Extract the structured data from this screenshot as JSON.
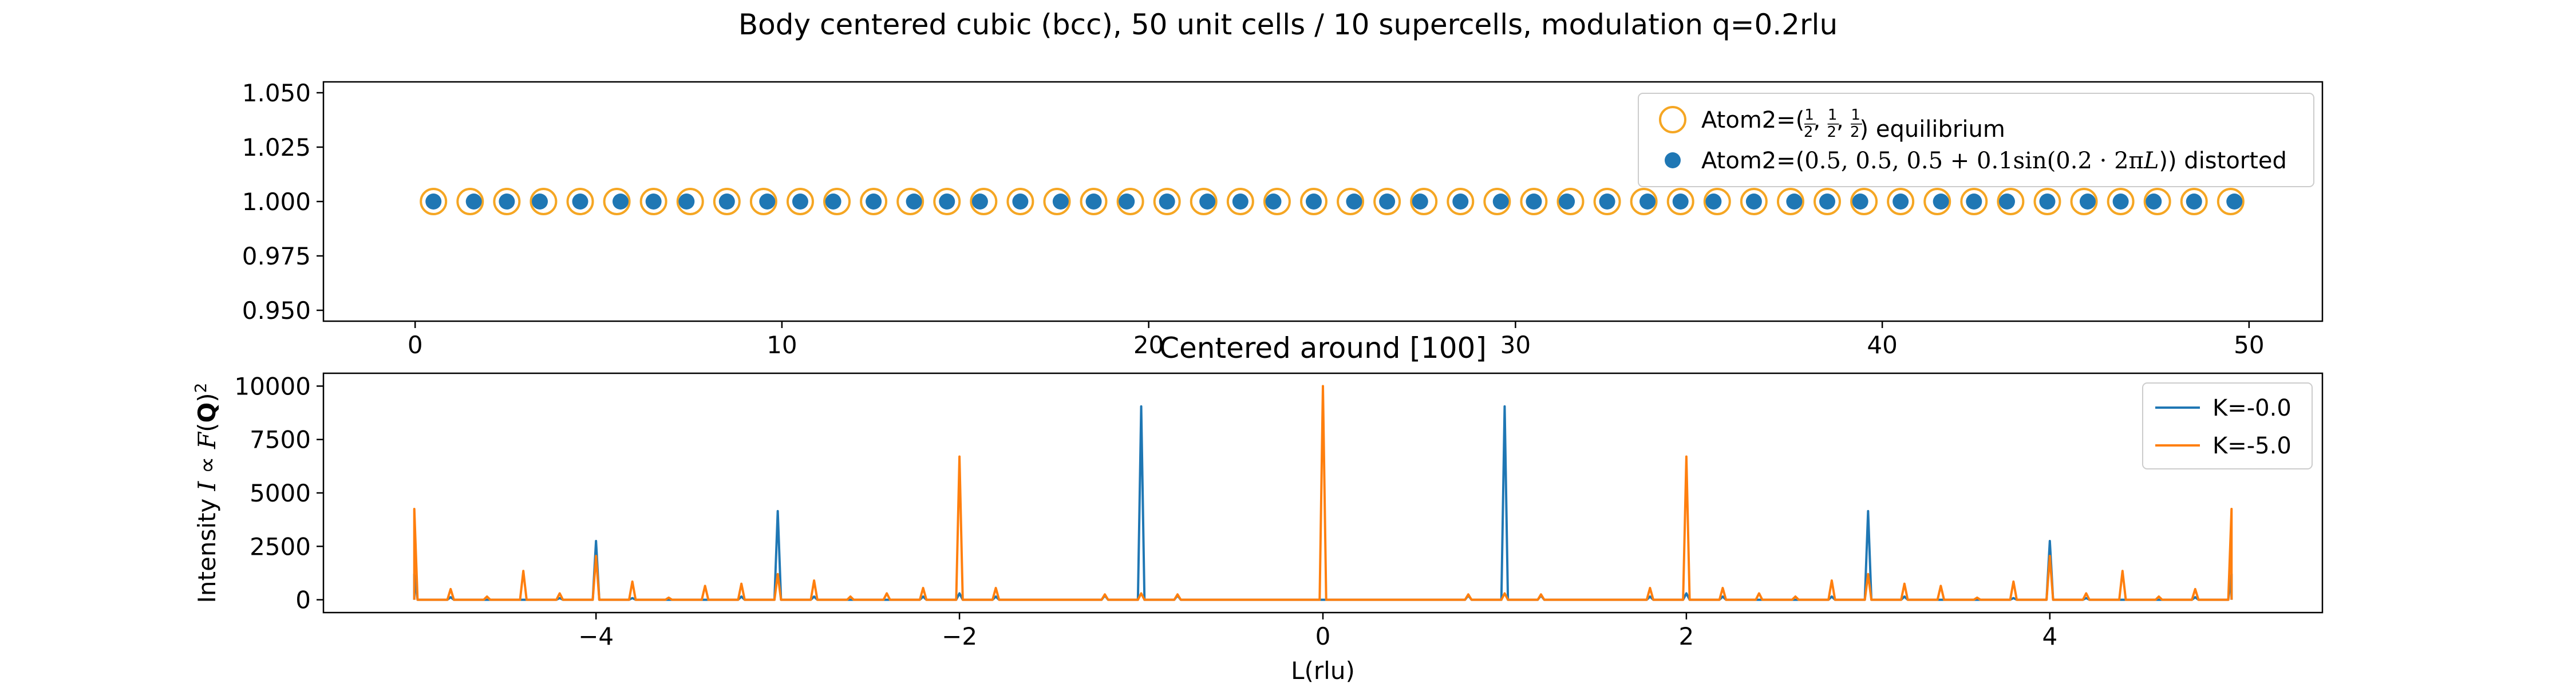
{
  "figure": {
    "title": "Body centered cubic (bcc), 50 unit cells / 10 supercells, modulation q=0.2rlu"
  },
  "colors": {
    "blue": "#1f77b4",
    "orange": "#ff7f0e",
    "ring": "#f5a623",
    "axis": "#000000"
  },
  "chart_data": [
    {
      "type": "scatter",
      "title": "",
      "xlabel": "",
      "ylabel": "",
      "xlim": [
        -2.5,
        52
      ],
      "ylim": [
        0.945,
        1.055
      ],
      "xticks": [
        0,
        10,
        20,
        30,
        40,
        50
      ],
      "xtick_labels": [
        "0",
        "10",
        "20",
        "30",
        "40",
        "50"
      ],
      "yticks": [
        0.95,
        0.975,
        1.0,
        1.025,
        1.05
      ],
      "ytick_labels": [
        "0.950",
        "0.975",
        "1.000",
        "1.025",
        "1.050"
      ],
      "grid": false,
      "legend_position": "upper right",
      "series": [
        {
          "name": "Atom2=(½, ½, ½) equilibrium",
          "name_prefix": "Atom2=(",
          "name_fracs": [
            "1",
            "2"
          ],
          "name_suffix": ") equilibrium",
          "marker": "open-circle",
          "color": "#f5a623",
          "x": [
            0.5,
            1.5,
            2.5,
            3.5,
            4.5,
            5.5,
            6.5,
            7.5,
            8.5,
            9.5,
            10.5,
            11.5,
            12.5,
            13.5,
            14.5,
            15.5,
            16.5,
            17.5,
            18.5,
            19.5,
            20.5,
            21.5,
            22.5,
            23.5,
            24.5,
            25.5,
            26.5,
            27.5,
            28.5,
            29.5,
            30.5,
            31.5,
            32.5,
            33.5,
            34.5,
            35.5,
            36.5,
            37.5,
            38.5,
            39.5,
            40.5,
            41.5,
            42.5,
            43.5,
            44.5,
            45.5,
            46.5,
            47.5,
            48.5,
            49.5
          ],
          "y_constant": 1.0
        },
        {
          "name": "Atom2=(0.5, 0.5, 0.5 + 0.1sin(0.2 · 2πL)) distorted",
          "name_parts": [
            "Atom2=(",
            "0.5, 0.5, 0.5 + 0.1sin(0.2 · 2π",
            "L",
            ")) distorted"
          ],
          "marker": "filled-circle",
          "color": "#1f77b4",
          "x": [
            0.5,
            1.6,
            2.5,
            3.4,
            4.5,
            5.6,
            6.5,
            7.4,
            8.5,
            9.6,
            10.5,
            11.4,
            12.5,
            13.6,
            14.5,
            15.4,
            16.5,
            17.6,
            18.5,
            19.4,
            20.5,
            21.6,
            22.5,
            23.4,
            24.5,
            25.6,
            26.5,
            27.4,
            28.5,
            29.6,
            30.5,
            31.4,
            32.5,
            33.6,
            34.5,
            35.4,
            36.5,
            37.6,
            38.5,
            39.4,
            40.5,
            41.6,
            42.5,
            43.4,
            44.5,
            45.6,
            46.5,
            47.4,
            48.5,
            49.6
          ],
          "y_constant": 1.0
        }
      ]
    },
    {
      "type": "line",
      "title": "Centered around [100]",
      "xlabel": "L(rlu)",
      "ylabel": "Intensity I ∝ F(Q)²",
      "ylabel_parts": [
        "Intensity ",
        "I",
        " ∝ ",
        "F",
        "(",
        "Q",
        ")",
        "2"
      ],
      "xlim": [
        -5.5,
        5.5
      ],
      "ylim": [
        -600,
        10600
      ],
      "xticks": [
        -4,
        -2,
        0,
        2,
        4
      ],
      "xtick_labels": [
        "−4",
        "−2",
        "0",
        "2",
        "4"
      ],
      "yticks": [
        0,
        2500,
        5000,
        7500,
        10000
      ],
      "ytick_labels": [
        "0",
        "2500",
        "5000",
        "7500",
        "10000"
      ],
      "grid": false,
      "legend_position": "upper right",
      "peak_half_width_rlu": 0.018,
      "series": [
        {
          "name": "K=-0.0",
          "color": "#1f77b4",
          "peaks_x": [
            -5.0,
            -4.8,
            -4.2,
            -4.0,
            -3.8,
            -3.2,
            -3.0,
            -2.8,
            -2.2,
            -2.0,
            -1.8,
            -1.2,
            -1.0,
            -0.8,
            0.8,
            1.0,
            1.2,
            1.8,
            2.0,
            2.2,
            2.8,
            3.0,
            3.2,
            3.8,
            4.0,
            4.2,
            4.8,
            5.0
          ],
          "peaks_y": [
            1200,
            120,
            80,
            2750,
            80,
            150,
            4150,
            150,
            150,
            300,
            150,
            200,
            9050,
            200,
            200,
            9050,
            200,
            150,
            300,
            150,
            150,
            4150,
            150,
            80,
            2750,
            80,
            120,
            1200
          ]
        },
        {
          "name": "K=-5.0",
          "color": "#ff7f0e",
          "peaks_x": [
            -5.0,
            -4.8,
            -4.6,
            -4.4,
            -4.2,
            -4.0,
            -3.8,
            -3.6,
            -3.4,
            -3.2,
            -3.0,
            -2.8,
            -2.6,
            -2.4,
            -2.2,
            -2.0,
            -1.8,
            -1.2,
            -1.0,
            -0.8,
            0.0,
            0.8,
            1.0,
            1.2,
            1.8,
            2.0,
            2.2,
            2.4,
            2.6,
            2.8,
            3.0,
            3.2,
            3.4,
            3.6,
            3.8,
            4.0,
            4.2,
            4.4,
            4.6,
            4.8,
            5.0
          ],
          "peaks_y": [
            4250,
            500,
            150,
            1350,
            300,
            2050,
            850,
            100,
            650,
            750,
            1200,
            900,
            150,
            300,
            550,
            6700,
            550,
            250,
            300,
            250,
            10000,
            250,
            300,
            250,
            550,
            6700,
            550,
            300,
            150,
            900,
            1200,
            750,
            650,
            100,
            850,
            2050,
            300,
            1350,
            150,
            500,
            4250
          ]
        }
      ]
    }
  ]
}
